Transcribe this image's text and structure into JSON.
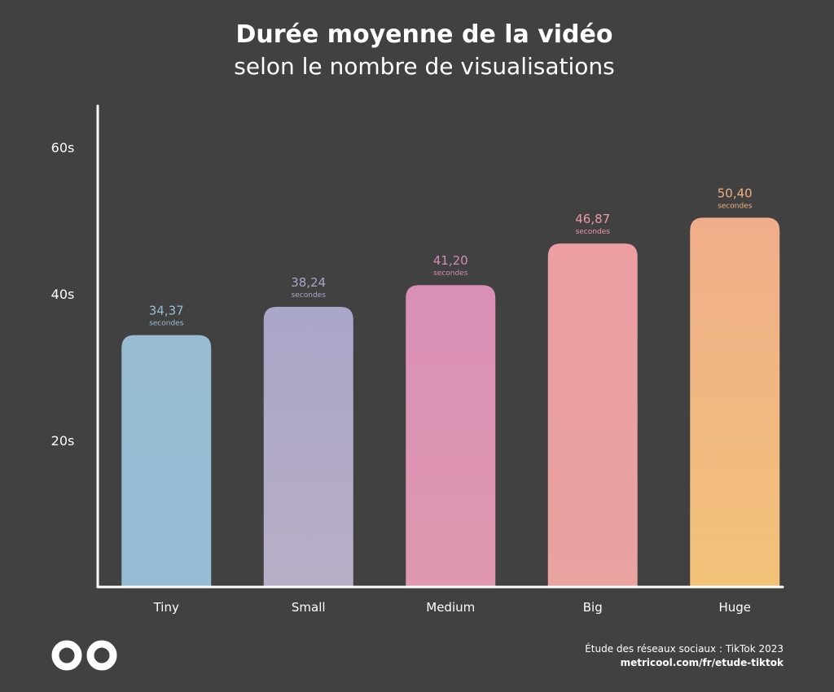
{
  "header": {
    "title": "Durée moyenne de la vidéo",
    "subtitle": "selon le nombre de visualisations"
  },
  "footer": {
    "source": "Étude des réseaux sociaux : TikTok 2023",
    "url": "metricool.com/fr/etude-tiktok",
    "logo_icon": "infinity-logo-icon"
  },
  "chart_data": {
    "type": "bar",
    "categories": [
      "Tiny",
      "Small",
      "Medium",
      "Big",
      "Huge"
    ],
    "values": [
      34.37,
      38.24,
      41.2,
      46.87,
      50.4
    ],
    "value_labels": [
      "34,37",
      "38,24",
      "41,20",
      "46,87",
      "50,40"
    ],
    "value_unit_label": "secondes",
    "y_ticks": [
      20,
      40,
      60
    ],
    "y_tick_labels": [
      "20s",
      "40s",
      "60s"
    ],
    "ylim": [
      0,
      65
    ],
    "grid": false,
    "colors": {
      "bars_top": [
        "#98bdd2",
        "#aaa6c9",
        "#da8fb6",
        "#ec9ea2",
        "#f0ad8a"
      ],
      "bars_bottom": [
        "#95bdd4",
        "#b8aec6",
        "#e098b0",
        "#e9a3a0",
        "#f2c279"
      ],
      "labels": [
        "#98bdd2",
        "#aaa6c9",
        "#d38cb8",
        "#eb9aa6",
        "#f1b27f"
      ],
      "axis": "#ffffff",
      "background": "#414141"
    }
  }
}
